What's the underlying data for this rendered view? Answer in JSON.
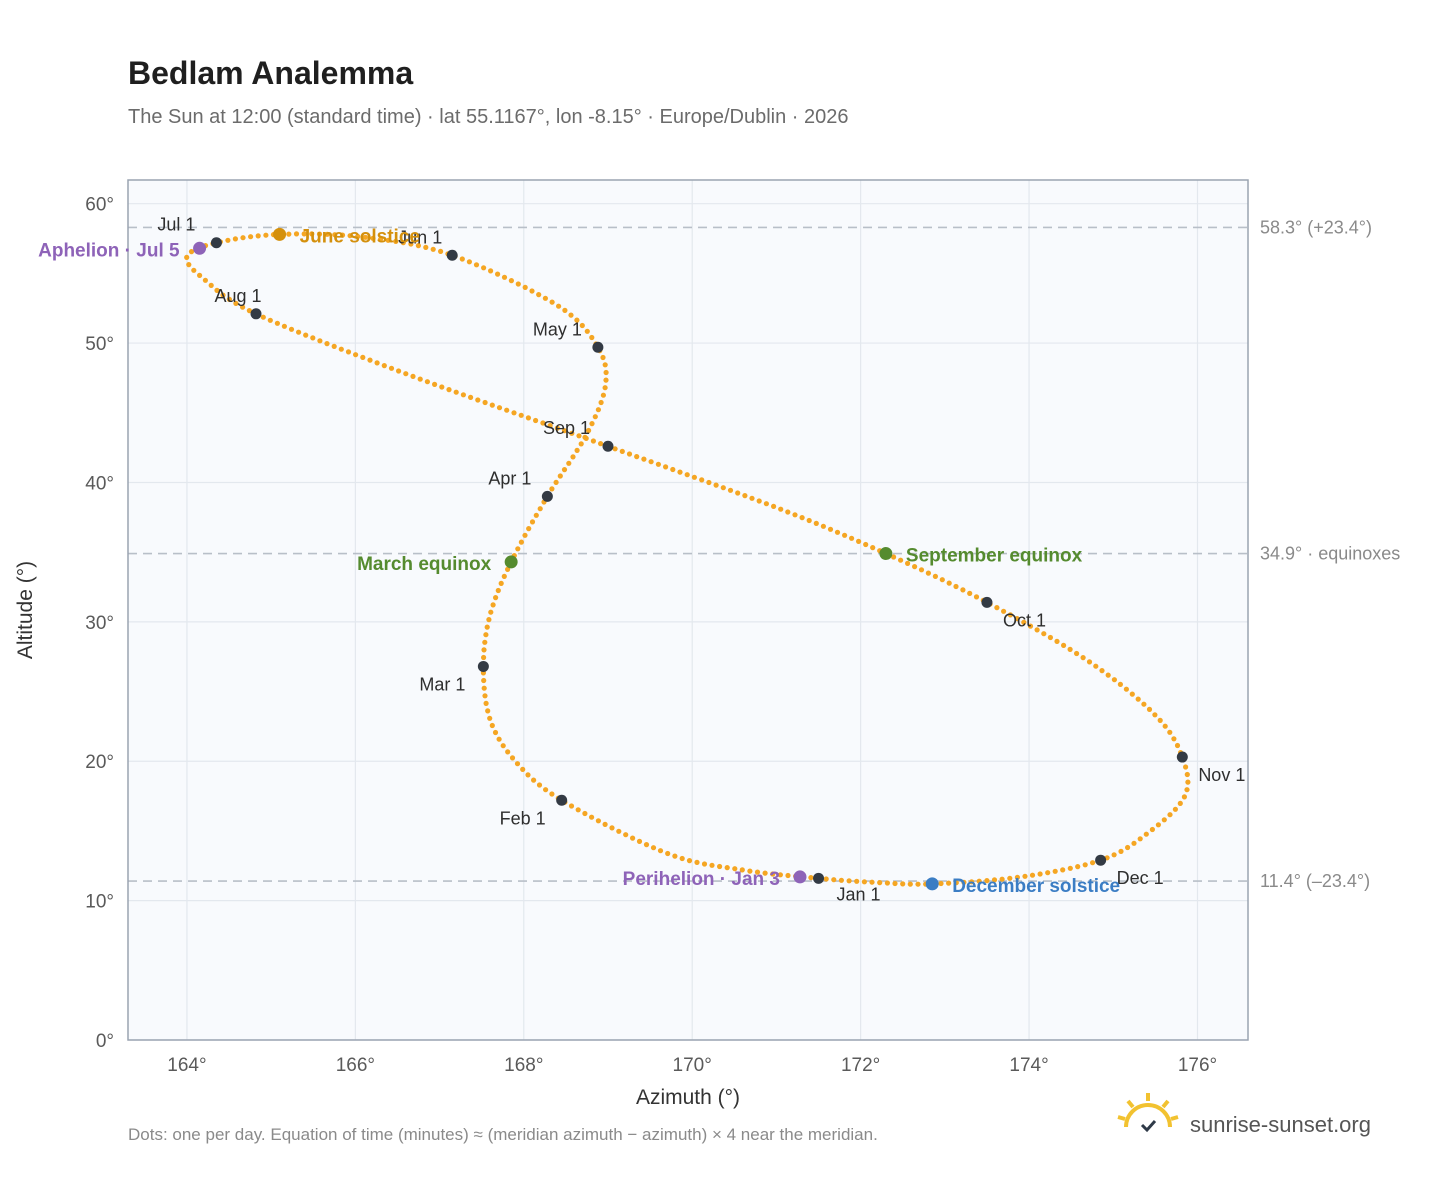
{
  "header": {
    "title": "Bedlam Analemma",
    "subtitle": "The Sun at 12:00 (standard time) · lat 55.1167°, lon -8.15° · Europe/Dublin · 2026"
  },
  "footer": {
    "note": "Dots: one per day. Equation of time (minutes) ≈ (meridian azimuth − azimuth) × 4 near the meridian.",
    "brand": "sunrise-sunset.org"
  },
  "colors": {
    "curve": "#f5a623",
    "month_marker": "#333a44",
    "june_solstice": "#d4900d",
    "december_solstice": "#3b7dc4",
    "equinox": "#558b2f",
    "apsis": "#8e63b8",
    "reference_line": "#b8bfc8",
    "plot_background": "#f8fafd",
    "grid": "#e3e8ee",
    "frame": "#9aa4b1"
  },
  "chart_data": {
    "type": "scatter",
    "xlabel": "Azimuth (°)",
    "ylabel": "Altitude (°)",
    "xlim": [
      163.3,
      176.6
    ],
    "ylim": [
      0,
      61.7
    ],
    "x_ticks": [
      164,
      166,
      168,
      170,
      172,
      174,
      176
    ],
    "x_tick_labels": [
      "164°",
      "166°",
      "168°",
      "170°",
      "172°",
      "174°",
      "176°"
    ],
    "y_ticks": [
      0,
      10,
      20,
      30,
      40,
      50,
      60
    ],
    "y_tick_labels": [
      "0°",
      "10°",
      "20°",
      "30°",
      "40°",
      "50°",
      "60°"
    ],
    "grid": true,
    "reference_lines": [
      {
        "altitude": 58.3,
        "label": "58.3° (+23.4°)"
      },
      {
        "altitude": 34.9,
        "label": "34.9° · equinoxes"
      },
      {
        "altitude": 11.4,
        "label": "11.4° (–23.4°)"
      }
    ],
    "month_markers": [
      {
        "label": "Jan 1",
        "azimuth": 171.5,
        "altitude": 11.6
      },
      {
        "label": "Feb 1",
        "azimuth": 168.45,
        "altitude": 17.2
      },
      {
        "label": "Mar 1",
        "azimuth": 167.52,
        "altitude": 26.8
      },
      {
        "label": "Apr 1",
        "azimuth": 168.28,
        "altitude": 39.0
      },
      {
        "label": "May 1",
        "azimuth": 168.88,
        "altitude": 49.7
      },
      {
        "label": "Jun 1",
        "azimuth": 167.15,
        "altitude": 56.3
      },
      {
        "label": "Jul 1",
        "azimuth": 164.35,
        "altitude": 57.2
      },
      {
        "label": "Aug 1",
        "azimuth": 164.82,
        "altitude": 52.1
      },
      {
        "label": "Sep 1",
        "azimuth": 169.0,
        "altitude": 42.6
      },
      {
        "label": "Oct 1",
        "azimuth": 173.5,
        "altitude": 31.4
      },
      {
        "label": "Nov 1",
        "azimuth": 175.82,
        "altitude": 20.3
      },
      {
        "label": "Dec 1",
        "azimuth": 174.85,
        "altitude": 12.9
      }
    ],
    "events": [
      {
        "label": "June solstice",
        "azimuth": 165.1,
        "altitude": 57.8,
        "color_key": "june_solstice"
      },
      {
        "label": "December solstice",
        "azimuth": 172.85,
        "altitude": 11.2,
        "color_key": "december_solstice"
      },
      {
        "label": "March equinox",
        "azimuth": 167.85,
        "altitude": 34.3,
        "color_key": "equinox"
      },
      {
        "label": "September equinox",
        "azimuth": 172.3,
        "altitude": 34.9,
        "color_key": "equinox"
      },
      {
        "label": "Aphelion · Jul 5",
        "azimuth": 164.15,
        "altitude": 56.8,
        "color_key": "apsis"
      },
      {
        "label": "Perihelion · Jan 3",
        "azimuth": 171.28,
        "altitude": 11.7,
        "color_key": "apsis"
      }
    ],
    "curve_anchors": [
      {
        "azimuth": 171.5,
        "altitude": 11.6
      },
      {
        "azimuth": 170.6,
        "altitude": 12.2
      },
      {
        "azimuth": 169.7,
        "altitude": 13.4
      },
      {
        "azimuth": 168.45,
        "altitude": 17.2
      },
      {
        "azimuth": 167.9,
        "altitude": 20.0
      },
      {
        "azimuth": 167.6,
        "altitude": 23.0
      },
      {
        "azimuth": 167.52,
        "altitude": 26.8
      },
      {
        "azimuth": 167.6,
        "altitude": 30.5
      },
      {
        "azimuth": 167.85,
        "altitude": 34.3
      },
      {
        "azimuth": 168.28,
        "altitude": 39.0
      },
      {
        "azimuth": 168.75,
        "altitude": 43.5
      },
      {
        "azimuth": 168.97,
        "altitude": 47.0
      },
      {
        "azimuth": 168.88,
        "altitude": 49.7
      },
      {
        "azimuth": 168.4,
        "altitude": 52.7
      },
      {
        "azimuth": 167.15,
        "altitude": 56.3
      },
      {
        "azimuth": 166.1,
        "altitude": 57.6
      },
      {
        "azimuth": 165.1,
        "altitude": 57.8
      },
      {
        "azimuth": 164.35,
        "altitude": 57.2
      },
      {
        "azimuth": 164.0,
        "altitude": 56.2
      },
      {
        "azimuth": 164.2,
        "altitude": 54.6
      },
      {
        "azimuth": 164.82,
        "altitude": 52.1
      },
      {
        "azimuth": 166.6,
        "altitude": 47.8
      },
      {
        "azimuth": 169.0,
        "altitude": 42.6
      },
      {
        "azimuth": 171.0,
        "altitude": 38.2
      },
      {
        "azimuth": 172.3,
        "altitude": 34.9
      },
      {
        "azimuth": 173.5,
        "altitude": 31.4
      },
      {
        "azimuth": 174.7,
        "altitude": 27.2
      },
      {
        "azimuth": 175.5,
        "altitude": 23.3
      },
      {
        "azimuth": 175.82,
        "altitude": 20.3
      },
      {
        "azimuth": 175.85,
        "altitude": 17.5
      },
      {
        "azimuth": 175.4,
        "altitude": 14.8
      },
      {
        "azimuth": 174.85,
        "altitude": 12.9
      },
      {
        "azimuth": 173.9,
        "altitude": 11.7
      },
      {
        "azimuth": 172.85,
        "altitude": 11.2
      },
      {
        "azimuth": 172.2,
        "altitude": 11.3
      },
      {
        "azimuth": 171.5,
        "altitude": 11.6
      }
    ]
  }
}
